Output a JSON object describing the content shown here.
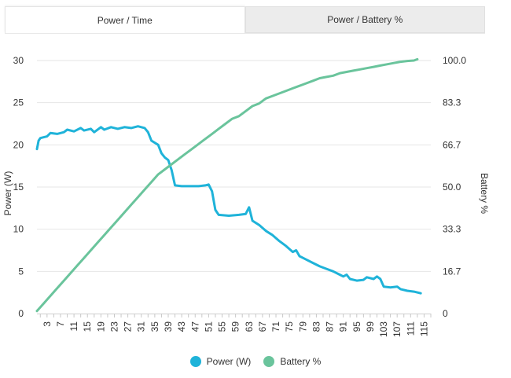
{
  "tabs": [
    {
      "label": "Power / Time",
      "active": true
    },
    {
      "label": "Power / Battery %",
      "active": false
    }
  ],
  "chart_data": {
    "type": "line",
    "title": "",
    "xlabel": "",
    "ylabel_left": "Power (W)",
    "ylabel_right": "Battery %",
    "xlim": [
      0,
      117
    ],
    "ylim_left": [
      0,
      30
    ],
    "ylim_right": [
      0,
      100
    ],
    "x_ticks": [
      3,
      7,
      11,
      15,
      19,
      23,
      27,
      31,
      35,
      39,
      43,
      47,
      51,
      55,
      59,
      63,
      67,
      71,
      75,
      79,
      83,
      87,
      91,
      95,
      99,
      103,
      107,
      111,
      115
    ],
    "y_ticks_left": [
      0,
      5,
      10,
      15,
      20,
      25,
      30
    ],
    "y_ticks_right": [
      "0",
      "16.7",
      "33.3",
      "50.0",
      "66.7",
      "83.3",
      "100.0"
    ],
    "grid": true,
    "legend_position": "bottom",
    "series": [
      {
        "name": "Power (W)",
        "axis": "left",
        "color": "#1fb3d9",
        "points": [
          [
            0,
            19.5
          ],
          [
            0.5,
            20.5
          ],
          [
            1,
            20.8
          ],
          [
            3,
            21.0
          ],
          [
            4,
            21.4
          ],
          [
            6,
            21.3
          ],
          [
            8,
            21.5
          ],
          [
            9,
            21.8
          ],
          [
            11,
            21.6
          ],
          [
            13,
            22.0
          ],
          [
            14,
            21.7
          ],
          [
            16,
            21.9
          ],
          [
            17,
            21.5
          ],
          [
            19,
            22.1
          ],
          [
            20,
            21.8
          ],
          [
            22,
            22.1
          ],
          [
            24,
            21.9
          ],
          [
            26,
            22.1
          ],
          [
            28,
            22.0
          ],
          [
            30,
            22.2
          ],
          [
            32,
            22.0
          ],
          [
            33,
            21.5
          ],
          [
            34,
            20.5
          ],
          [
            36,
            20.0
          ],
          [
            37,
            19.0
          ],
          [
            38,
            18.5
          ],
          [
            39,
            18.2
          ],
          [
            40,
            17.0
          ],
          [
            41,
            15.2
          ],
          [
            43,
            15.1
          ],
          [
            46,
            15.1
          ],
          [
            48,
            15.1
          ],
          [
            50,
            15.2
          ],
          [
            51,
            15.3
          ],
          [
            52,
            14.5
          ],
          [
            53,
            12.3
          ],
          [
            54,
            11.7
          ],
          [
            57,
            11.6
          ],
          [
            60,
            11.7
          ],
          [
            62,
            11.8
          ],
          [
            63,
            12.6
          ],
          [
            64,
            11.0
          ],
          [
            66,
            10.5
          ],
          [
            68,
            9.8
          ],
          [
            70,
            9.3
          ],
          [
            72,
            8.6
          ],
          [
            74,
            8.0
          ],
          [
            76,
            7.3
          ],
          [
            77,
            7.5
          ],
          [
            78,
            6.8
          ],
          [
            80,
            6.4
          ],
          [
            82,
            6.0
          ],
          [
            84,
            5.6
          ],
          [
            86,
            5.3
          ],
          [
            88,
            5.0
          ],
          [
            90,
            4.6
          ],
          [
            91,
            4.4
          ],
          [
            92,
            4.6
          ],
          [
            93,
            4.1
          ],
          [
            95,
            3.9
          ],
          [
            97,
            4.0
          ],
          [
            98,
            4.3
          ],
          [
            100,
            4.1
          ],
          [
            101,
            4.4
          ],
          [
            102,
            4.1
          ],
          [
            103,
            3.2
          ],
          [
            105,
            3.1
          ],
          [
            107,
            3.2
          ],
          [
            108,
            2.9
          ],
          [
            110,
            2.7
          ],
          [
            112,
            2.6
          ],
          [
            114,
            2.4
          ]
        ]
      },
      {
        "name": "Battery %",
        "axis": "right",
        "color": "#6ac49c",
        "points": [
          [
            0,
            1
          ],
          [
            2,
            4
          ],
          [
            4,
            7
          ],
          [
            6,
            10
          ],
          [
            8,
            13
          ],
          [
            10,
            16
          ],
          [
            12,
            19
          ],
          [
            14,
            22
          ],
          [
            16,
            25
          ],
          [
            18,
            28
          ],
          [
            20,
            31
          ],
          [
            22,
            34
          ],
          [
            24,
            37
          ],
          [
            26,
            40
          ],
          [
            28,
            43
          ],
          [
            30,
            46
          ],
          [
            32,
            49
          ],
          [
            34,
            52
          ],
          [
            36,
            55
          ],
          [
            38,
            57
          ],
          [
            40,
            59
          ],
          [
            42,
            61
          ],
          [
            44,
            63
          ],
          [
            46,
            65
          ],
          [
            48,
            67
          ],
          [
            50,
            69
          ],
          [
            52,
            71
          ],
          [
            54,
            73
          ],
          [
            56,
            75
          ],
          [
            58,
            77
          ],
          [
            60,
            78
          ],
          [
            62,
            80
          ],
          [
            64,
            82
          ],
          [
            66,
            83
          ],
          [
            68,
            85
          ],
          [
            70,
            86
          ],
          [
            72,
            87
          ],
          [
            74,
            88
          ],
          [
            76,
            89
          ],
          [
            78,
            90
          ],
          [
            80,
            91
          ],
          [
            82,
            92
          ],
          [
            84,
            93
          ],
          [
            86,
            93.5
          ],
          [
            88,
            94
          ],
          [
            90,
            95
          ],
          [
            92,
            95.5
          ],
          [
            94,
            96
          ],
          [
            96,
            96.5
          ],
          [
            98,
            97
          ],
          [
            100,
            97.5
          ],
          [
            102,
            98
          ],
          [
            104,
            98.5
          ],
          [
            106,
            99
          ],
          [
            108,
            99.5
          ],
          [
            110,
            99.8
          ],
          [
            112,
            100
          ],
          [
            113,
            100.5
          ]
        ]
      }
    ]
  }
}
